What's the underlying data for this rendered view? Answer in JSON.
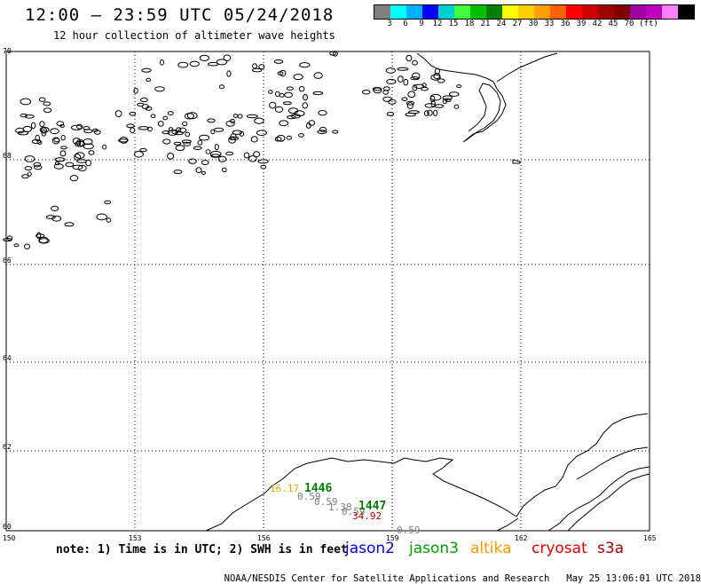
{
  "header": {
    "title": "12:00 – 23:59 UTC 05/24/2018",
    "subtitle": "12 hour collection of altimeter wave heights"
  },
  "legend": {
    "colors": [
      "#808080",
      "#00ffff",
      "#00b0ff",
      "#0000ff",
      "#00d0d0",
      "#40ff40",
      "#00c000",
      "#008000",
      "#ffff00",
      "#ffd000",
      "#ffa000",
      "#ff6000",
      "#ff0000",
      "#d00000",
      "#a00000",
      "#800000",
      "#a000a0",
      "#c000c0",
      "#ff80ff",
      "#000000"
    ],
    "labels": [
      "3",
      "6",
      "9",
      "12",
      "15",
      "18",
      "21",
      "24",
      "27",
      "30",
      "33",
      "36",
      "39",
      "42",
      "45",
      "70",
      "(ft)"
    ],
    "units": "(ft)"
  },
  "map": {
    "lat_labels": [
      "70",
      "68",
      "66",
      "64",
      "62",
      "60"
    ],
    "lon_labels": [
      "150",
      "153",
      "156",
      "159",
      "162",
      "165"
    ],
    "observations": [
      {
        "id": "obs-1",
        "text": "16.17",
        "color": "#e0b000"
      },
      {
        "id": "obs-2",
        "text": "1446",
        "color": "#008000"
      },
      {
        "id": "obs-3",
        "text": "0.59",
        "color": "#808080"
      },
      {
        "id": "obs-4",
        "text": "0.59",
        "color": "#808080"
      },
      {
        "id": "obs-5",
        "text": "1.38",
        "color": "#808080"
      },
      {
        "id": "obs-6",
        "text": "0.59",
        "color": "#808080"
      },
      {
        "id": "obs-7",
        "text": "1447",
        "color": "#008000"
      },
      {
        "id": "obs-8",
        "text": "34.92",
        "color": "#c00000"
      },
      {
        "id": "obs-9",
        "text": "0.59",
        "color": "#808080"
      }
    ]
  },
  "footer": {
    "note": "note: 1) Time is in UTC; 2) SWH is in feet",
    "satellites": [
      {
        "name": "jason2",
        "color": "#0000e0"
      },
      {
        "name": "jason3",
        "color": "#00a000"
      },
      {
        "name": "altika",
        "color": "#ff9900"
      },
      {
        "name": "cryosat",
        "color": "#e00000"
      },
      {
        "name": "s3a",
        "color": "#a00000"
      }
    ],
    "credit": "NOAA/NESDIS Center for Satellite Applications and Research",
    "generated": "May 25 13:06:01 UTC 2018"
  }
}
